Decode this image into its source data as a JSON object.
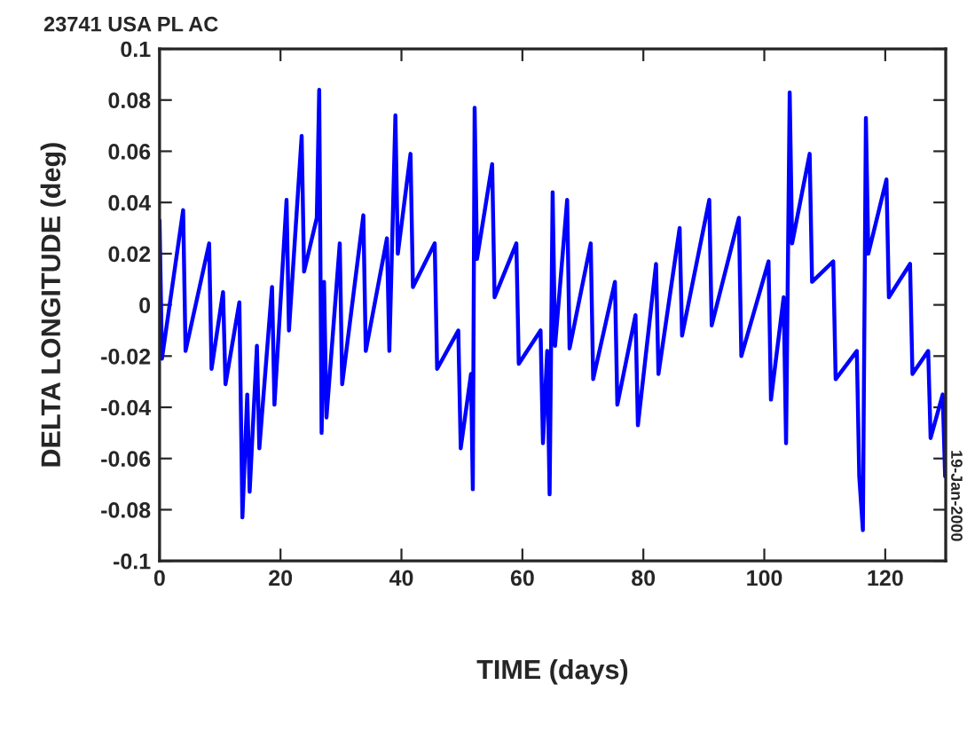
{
  "chart_data": {
    "type": "line",
    "title": "23741 USA PL AC",
    "xlabel": "TIME (days)",
    "ylabel": "DELTA LONGITUDE (deg)",
    "annotations": [
      "19-Jan-2000"
    ],
    "series": [
      {
        "color": "#0000ff",
        "x": [
          0,
          0.4,
          3.9,
          4.3,
          8.2,
          8.6,
          10.5,
          10.9,
          13.2,
          13.7,
          14.5,
          14.9,
          16.1,
          16.5,
          18.6,
          19,
          21,
          21.4,
          23.5,
          23.9,
          26.0,
          26.4,
          26.8,
          27.2,
          27.6,
          29.8,
          30.2,
          33.7,
          34.1,
          37.6,
          38,
          39,
          39.4,
          41.5,
          41.9,
          45.5,
          45.9,
          49.4,
          49.8,
          51.5,
          51.8,
          52.1,
          52.5,
          55,
          55.4,
          59,
          59.4,
          63,
          63.4,
          64.1,
          64.5,
          65,
          65.4,
          67.4,
          67.8,
          71.3,
          71.7,
          75.3,
          75.7,
          78.7,
          79.1,
          82.1,
          82.5,
          86,
          86.4,
          90.9,
          91.3,
          95.8,
          96.2,
          100.7,
          101.1,
          103.2,
          103.6,
          104.2,
          104.6,
          107.5,
          107.9,
          111.4,
          111.8,
          115.3,
          115.7,
          116.3,
          116.8,
          117.2,
          120.2,
          120.6,
          124.1,
          124.5,
          127.1,
          127.5,
          129.5,
          129.9
        ],
        "values": [
          0.033,
          -0.021,
          0.037,
          -0.018,
          0.024,
          -0.025,
          0.005,
          -0.031,
          0.001,
          -0.083,
          -0.035,
          -0.073,
          -0.016,
          -0.056,
          0.007,
          -0.039,
          0.041,
          -0.01,
          0.066,
          0.013,
          0.034,
          0.084,
          -0.05,
          0.009,
          -0.044,
          0.024,
          -0.031,
          0.035,
          -0.018,
          0.026,
          -0.018,
          0.074,
          0.02,
          0.059,
          0.007,
          0.024,
          -0.025,
          -0.01,
          -0.056,
          -0.027,
          -0.072,
          0.077,
          0.018,
          0.055,
          0.003,
          0.024,
          -0.023,
          -0.01,
          -0.054,
          -0.018,
          -0.074,
          0.044,
          -0.016,
          0.041,
          -0.017,
          0.024,
          -0.029,
          0.009,
          -0.039,
          -0.004,
          -0.047,
          0.016,
          -0.027,
          0.03,
          -0.012,
          0.041,
          -0.008,
          0.034,
          -0.02,
          0.017,
          -0.037,
          0.003,
          -0.054,
          0.083,
          0.024,
          0.059,
          0.009,
          0.017,
          -0.029,
          -0.018,
          -0.067,
          -0.088,
          0.073,
          0.02,
          0.049,
          0.003,
          0.016,
          -0.027,
          -0.018,
          -0.052,
          -0.035,
          -0.067
        ]
      }
    ],
    "xlim": [
      0,
      130
    ],
    "xticks": [
      0,
      20,
      40,
      60,
      80,
      100,
      120
    ],
    "ylim": [
      -0.1,
      0.1
    ],
    "yticks": [
      -0.1,
      -0.08,
      -0.06,
      -0.04,
      -0.02,
      0,
      0.02,
      0.04,
      0.06,
      0.08,
      0.1
    ],
    "grid": false,
    "legend": false,
    "marker": "none",
    "line_style": "solid"
  }
}
